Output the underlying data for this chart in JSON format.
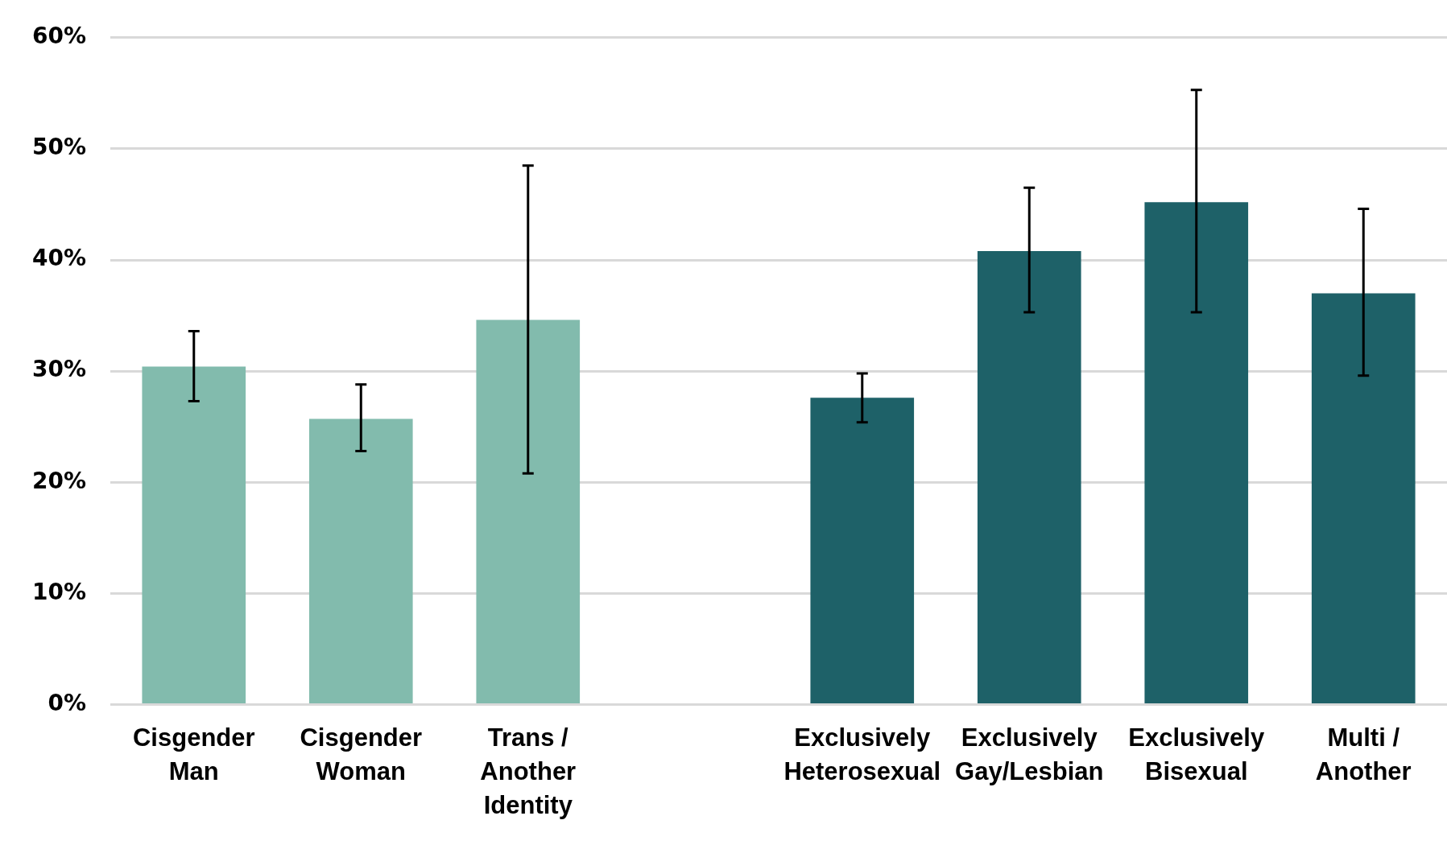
{
  "chart_data": {
    "type": "bar",
    "categories": [
      "Cisgender Man",
      "Cisgender Woman",
      "Trans / Another Identity",
      null,
      "Exclusively Heterosexual",
      "Exclusively Gay/Lesbian",
      "Exclusively Bisexual",
      "Multi / Another"
    ],
    "values": [
      30.4,
      25.7,
      34.6,
      null,
      27.6,
      40.8,
      45.2,
      37.0
    ],
    "colors": [
      "#82bbad",
      "#82bbad",
      "#82bbad",
      "#ffffff",
      "#1e6168",
      "#1e6168",
      "#1e6168",
      "#1e6168"
    ],
    "errors": [
      [
        27.3,
        33.6
      ],
      [
        22.8,
        28.8
      ],
      [
        20.8,
        48.5
      ],
      null,
      [
        25.4,
        29.8
      ],
      [
        35.3,
        46.5
      ],
      [
        35.3,
        55.3
      ],
      [
        29.6,
        44.6
      ]
    ],
    "ylim": [
      0,
      60
    ],
    "yticks": [
      {
        "value": 0,
        "label": "0%"
      },
      {
        "value": 10,
        "label": "10%"
      },
      {
        "value": 20,
        "label": "20%"
      },
      {
        "value": 30,
        "label": "30%"
      },
      {
        "value": 40,
        "label": "40%"
      },
      {
        "value": 50,
        "label": "50%"
      },
      {
        "value": 60,
        "label": "60%"
      }
    ],
    "grid": "y",
    "legend": false
  }
}
